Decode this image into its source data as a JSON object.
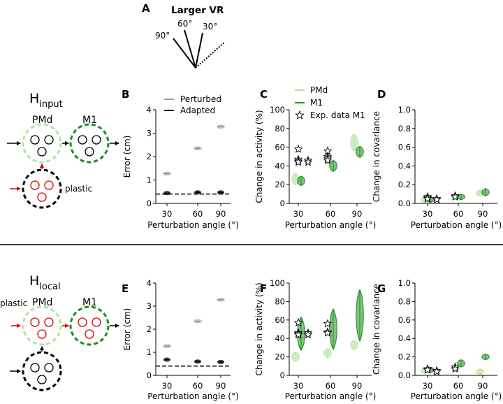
{
  "colors": {
    "pmd": "#b5e3a0",
    "m1": "#1e8c1e",
    "perturbed": "#999999",
    "adapted": "#000000",
    "plastic": "#d40000"
  },
  "panel_a": {
    "letter": "A",
    "title": "Larger VR",
    "angles": [
      "90°",
      "60°",
      "30°"
    ]
  },
  "h_input": {
    "title_main": "H",
    "title_sub": "input",
    "pmd_label": "PMd",
    "m1_label": "M1",
    "plastic_label": "plastic"
  },
  "h_local": {
    "title_main": "H",
    "title_sub": "local",
    "pmd_label": "PMd",
    "m1_label": "M1",
    "plastic_label": "plastic"
  },
  "chart_data": [
    {
      "id": "B",
      "type": "scatter",
      "letter": "B",
      "xlabel": "Perturbation angle (°)",
      "ylabel": "Error (cm)",
      "ylim": [
        0,
        4
      ],
      "yticks": [
        "0",
        "1",
        "2",
        "3",
        "4"
      ],
      "categories": [
        "30",
        "60",
        "90"
      ],
      "legend": {
        "position": "top-right",
        "entries": [
          "Perturbed",
          "Adapted"
        ]
      },
      "dashed_line_y": 0.4,
      "series": [
        {
          "name": "Perturbed",
          "values": [
            1.27,
            2.35,
            3.28
          ]
        },
        {
          "name": "Adapted",
          "values": [
            0.44,
            0.47,
            0.47
          ]
        }
      ]
    },
    {
      "id": "C",
      "type": "violin",
      "letter": "C",
      "xlabel": "Perturbation angle (°)",
      "ylabel": "Change in activity (%)",
      "ylim": [
        0,
        100
      ],
      "yticks": [
        "0",
        "20",
        "40",
        "60",
        "80",
        "100"
      ],
      "categories": [
        "30",
        "60",
        "90"
      ],
      "legend": {
        "position": "top-left",
        "entries": [
          "PMd",
          "M1",
          "Exp. data M1"
        ]
      },
      "series": [
        {
          "name": "PMd",
          "values": [
            26,
            48,
            65
          ],
          "spread": [
            6,
            6,
            9
          ]
        },
        {
          "name": "M1",
          "values": [
            24,
            40,
            55
          ],
          "spread": [
            5,
            6,
            6
          ]
        }
      ],
      "exp_points": [
        [
          30,
          58
        ],
        [
          30,
          47
        ],
        [
          30,
          45
        ],
        [
          30,
          44
        ],
        [
          40,
          46
        ],
        [
          40,
          44
        ],
        [
          60,
          56
        ],
        [
          60,
          50
        ],
        [
          60,
          48
        ],
        [
          60,
          46
        ]
      ]
    },
    {
      "id": "D",
      "type": "violin",
      "letter": "D",
      "xlabel": "Perturbation angle (°)",
      "ylabel": "Change in covariance",
      "ylim": [
        0,
        1
      ],
      "yticks": [
        "0.0",
        "0.2",
        "0.4",
        "0.6",
        "0.8",
        "1.0"
      ],
      "categories": [
        "30",
        "60",
        "90"
      ],
      "series": [
        {
          "name": "PMd",
          "values": [
            0.04,
            0.07,
            0.11
          ],
          "spread": [
            0.02,
            0.02,
            0.03
          ]
        },
        {
          "name": "M1",
          "values": [
            0.04,
            0.07,
            0.12
          ],
          "spread": [
            0.02,
            0.02,
            0.04
          ]
        }
      ],
      "exp_points": [
        [
          30,
          0.07
        ],
        [
          30,
          0.06
        ],
        [
          30,
          0.05
        ],
        [
          40,
          0.05
        ],
        [
          40,
          0.04
        ],
        [
          60,
          0.08
        ],
        [
          60,
          0.07
        ]
      ]
    },
    {
      "id": "E",
      "type": "scatter",
      "letter": "E",
      "xlabel": "Perturbation angle (°)",
      "ylabel": "Error (cm)",
      "ylim": [
        0,
        4
      ],
      "yticks": [
        "0",
        "1",
        "2",
        "3",
        "4"
      ],
      "categories": [
        "30",
        "60",
        "90"
      ],
      "dashed_line_y": 0.4,
      "series": [
        {
          "name": "Perturbed",
          "values": [
            1.27,
            2.35,
            3.28
          ]
        },
        {
          "name": "Adapted",
          "values": [
            0.68,
            0.6,
            0.58
          ]
        }
      ]
    },
    {
      "id": "F",
      "type": "violin",
      "letter": "F",
      "xlabel": "Perturbation angle (°)",
      "ylabel": "Change in activity (%)",
      "ylim": [
        0,
        100
      ],
      "yticks": [
        "0",
        "20",
        "40",
        "60",
        "80",
        "100"
      ],
      "categories": [
        "30",
        "60",
        "90"
      ],
      "series": [
        {
          "name": "PMd",
          "values": [
            20,
            24,
            33
          ],
          "spread": [
            5,
            5,
            5
          ]
        },
        {
          "name": "M1",
          "values": [
            45,
            50,
            65
          ],
          "spread": [
            18,
            22,
            28
          ]
        }
      ],
      "exp_points": [
        [
          30,
          57
        ],
        [
          30,
          46
        ],
        [
          30,
          45
        ],
        [
          30,
          44
        ],
        [
          40,
          46
        ],
        [
          40,
          44
        ],
        [
          60,
          56
        ],
        [
          60,
          47
        ],
        [
          60,
          46
        ]
      ]
    },
    {
      "id": "G",
      "type": "violin",
      "letter": "G",
      "xlabel": "Perturbation angle (°)",
      "ylabel": "Change in covariance",
      "ylim": [
        0,
        1
      ],
      "yticks": [
        "0.0",
        "0.2",
        "0.4",
        "0.6",
        "0.8",
        "1.0"
      ],
      "categories": [
        "30",
        "60",
        "90"
      ],
      "series": [
        {
          "name": "PMd",
          "values": [
            0.05,
            0.07,
            0.04
          ],
          "spread": [
            0.02,
            0.02,
            0.01
          ]
        },
        {
          "name": "M1",
          "values": [
            0.06,
            0.13,
            0.2
          ],
          "spread": [
            0.02,
            0.04,
            0.03
          ]
        }
      ],
      "exp_points": [
        [
          30,
          0.07
        ],
        [
          30,
          0.06
        ],
        [
          30,
          0.06
        ],
        [
          40,
          0.05
        ],
        [
          40,
          0.04
        ],
        [
          60,
          0.09
        ],
        [
          60,
          0.07
        ]
      ]
    }
  ]
}
